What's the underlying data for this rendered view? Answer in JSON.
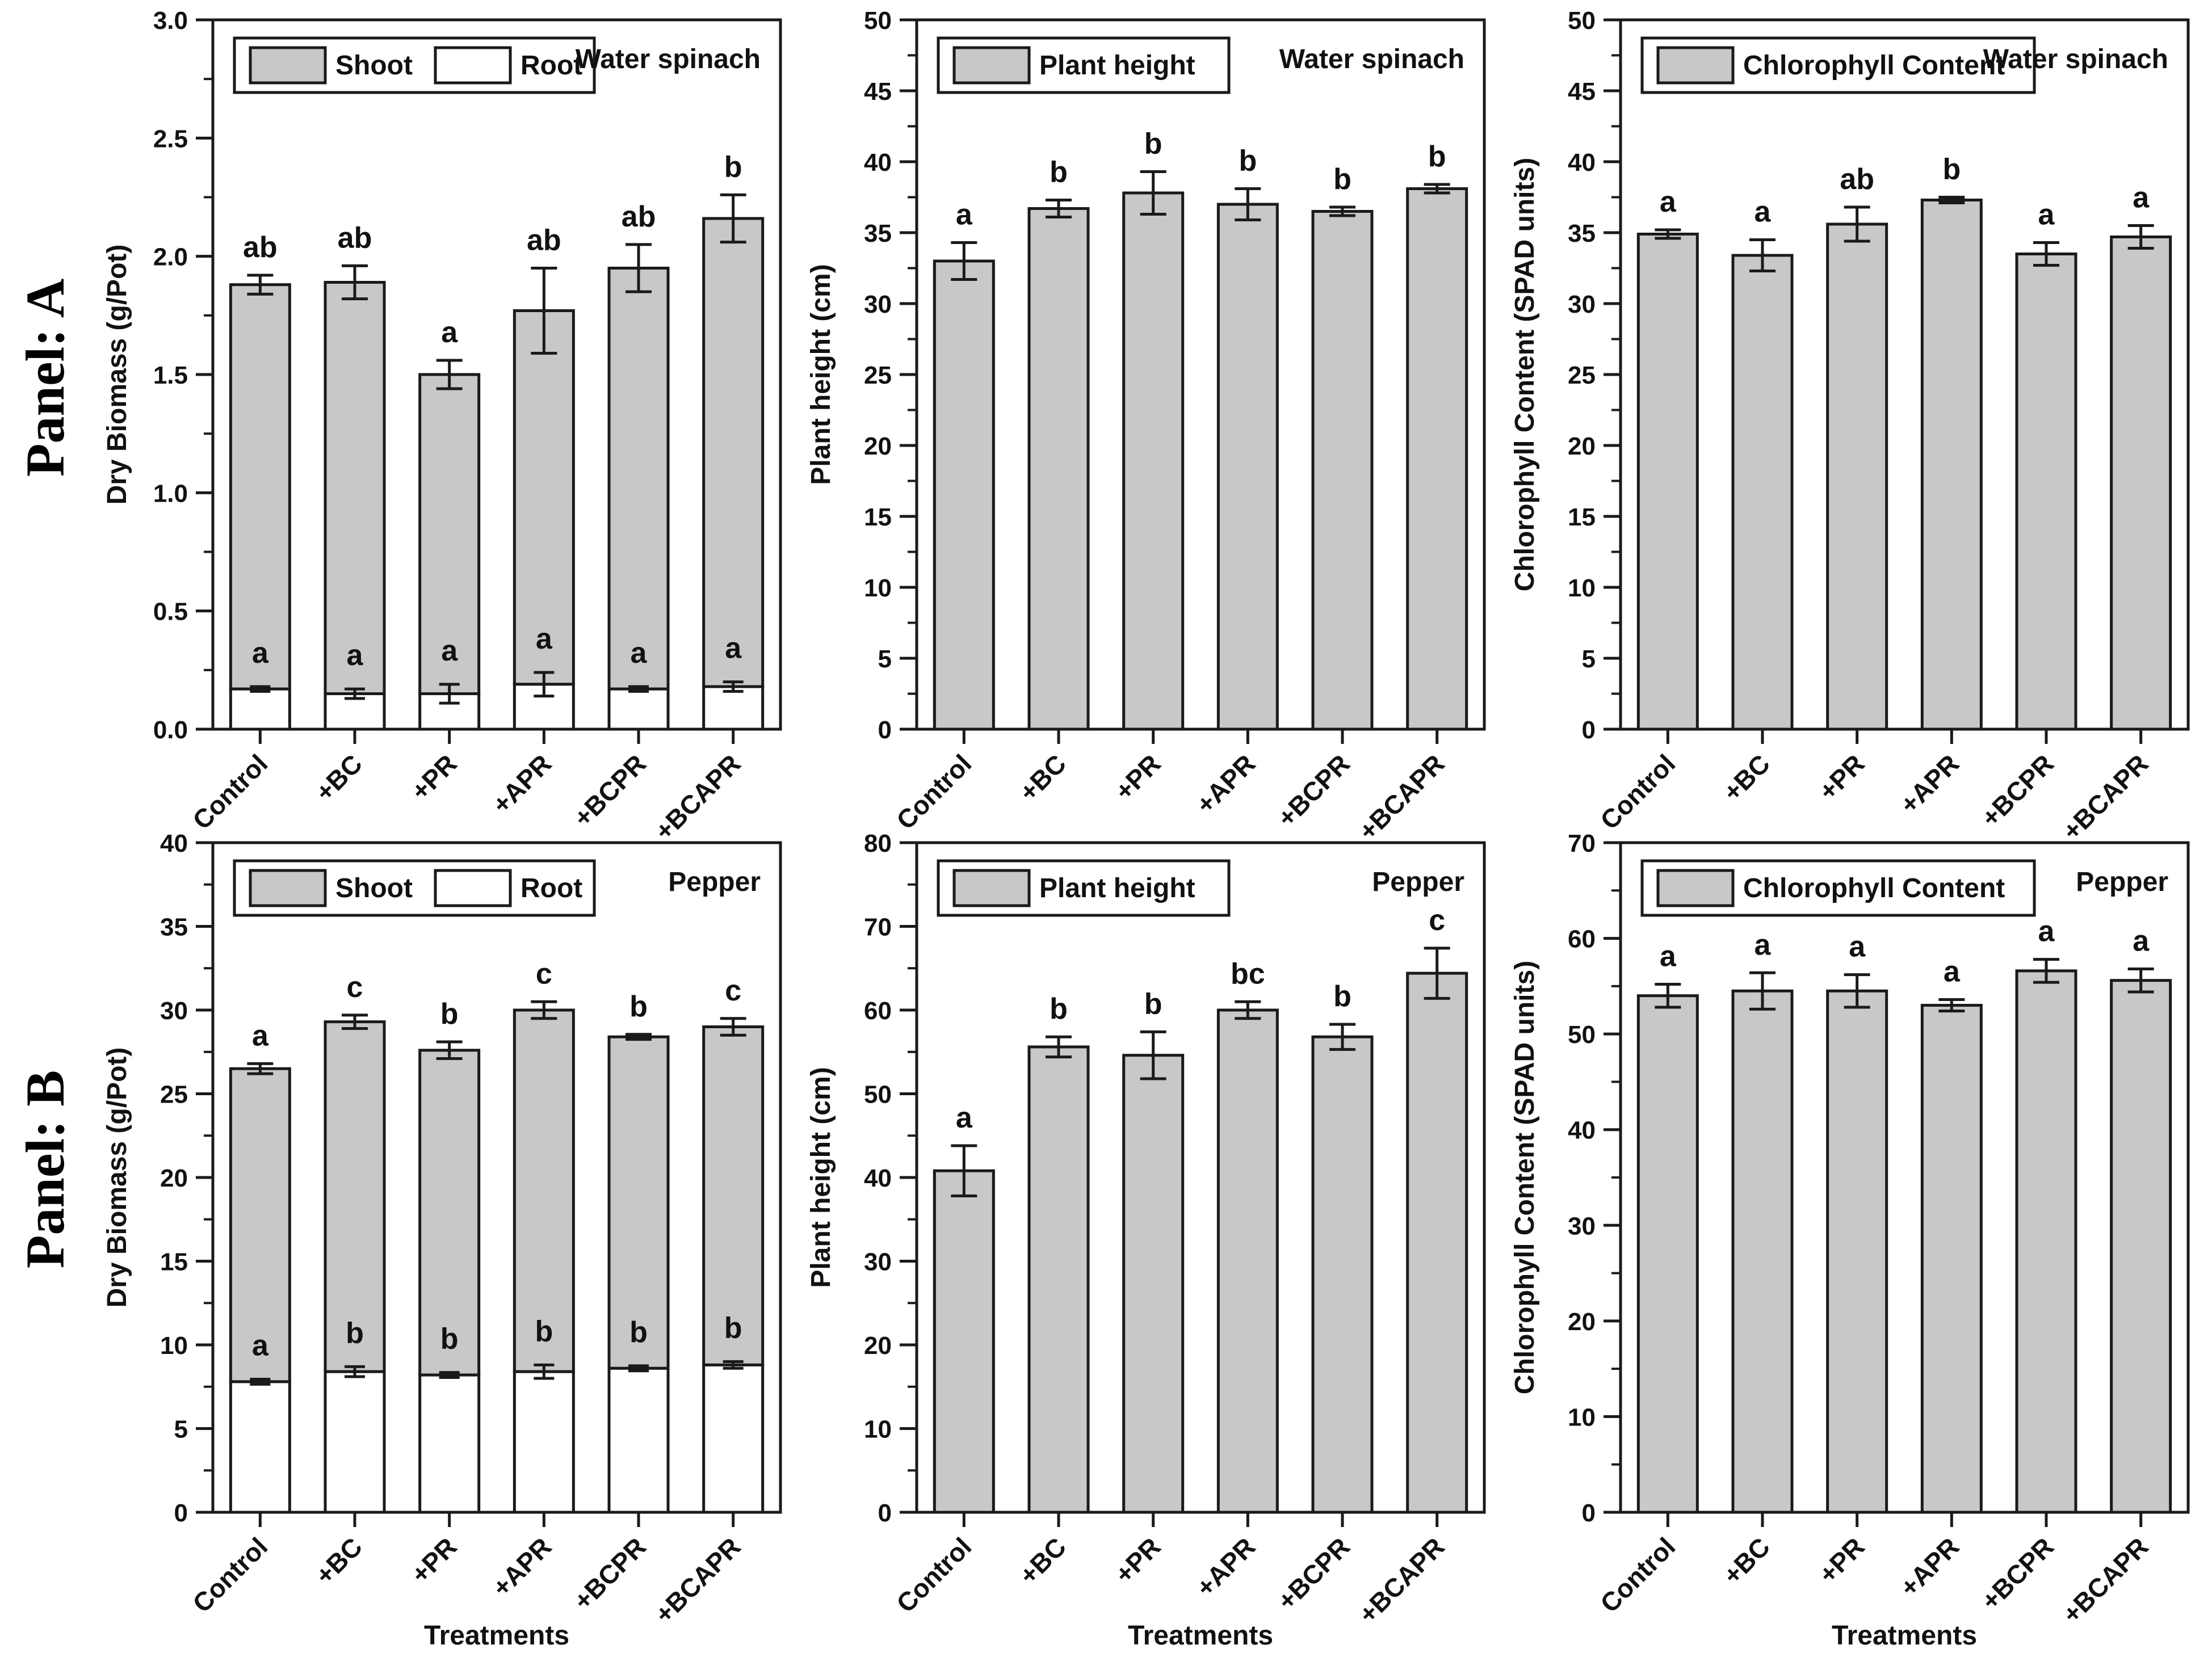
{
  "panels": [
    {
      "label": "Panel: A"
    },
    {
      "label": "Panel: B"
    }
  ],
  "xlabel": "Treatments",
  "colors": {
    "background": "#ffffff",
    "bar_fill": "#c8c8c8",
    "bar_stroke": "#1a1a1a",
    "axis": "#1a1a1a",
    "text": "#111111"
  },
  "chart_data": [
    {
      "type": "bar",
      "panel": "A",
      "annotation": "Water spinach",
      "ylabel": "Dry Biomass (g/Pot)",
      "ylim": [
        0,
        3.0
      ],
      "ytick_step": 0.5,
      "ytick_decimals": 1,
      "grid": false,
      "legend_position": "top-left",
      "stacked": true,
      "show_xlabel": false,
      "categories": [
        "Control",
        "+BC",
        "+PR",
        "+APR",
        "+BCPR",
        "+BCAPR"
      ],
      "legend": [
        {
          "label": "Shoot",
          "fill": "gray"
        },
        {
          "label": "Root",
          "fill": "white"
        }
      ],
      "series": {
        "root": {
          "name": "Root",
          "values": [
            0.17,
            0.15,
            0.15,
            0.19,
            0.17,
            0.18
          ],
          "errors": [
            0.01,
            0.02,
            0.04,
            0.05,
            0.01,
            0.02
          ],
          "letters": [
            "a",
            "a",
            "a",
            "a",
            "a",
            "a"
          ]
        },
        "total": {
          "name": "Shoot + Root total",
          "values": [
            1.88,
            1.89,
            1.5,
            1.77,
            1.95,
            2.16
          ],
          "errors": [
            0.04,
            0.07,
            0.06,
            0.18,
            0.1,
            0.1
          ],
          "letters": [
            "ab",
            "ab",
            "a",
            "ab",
            "ab",
            "b"
          ]
        }
      }
    },
    {
      "type": "bar",
      "panel": "A",
      "annotation": "Water spinach",
      "ylabel": "Plant height (cm)",
      "ylim": [
        0,
        50
      ],
      "ytick_step": 5,
      "ytick_decimals": 0,
      "grid": false,
      "legend_position": "top-left",
      "stacked": false,
      "show_xlabel": false,
      "categories": [
        "Control",
        "+BC",
        "+PR",
        "+APR",
        "+BCPR",
        "+BCAPR"
      ],
      "legend": [
        {
          "label": "Plant height",
          "fill": "gray"
        }
      ],
      "series": {
        "total": {
          "name": "Plant height",
          "values": [
            33.0,
            36.7,
            37.8,
            37.0,
            36.5,
            38.1
          ],
          "errors": [
            1.3,
            0.6,
            1.5,
            1.1,
            0.3,
            0.3
          ],
          "letters": [
            "a",
            "b",
            "b",
            "b",
            "b",
            "b"
          ]
        }
      }
    },
    {
      "type": "bar",
      "panel": "A",
      "annotation": "Water spinach",
      "ylabel": "Chlorophyll Content (SPAD units)",
      "ylim": [
        0,
        50
      ],
      "ytick_step": 5,
      "ytick_decimals": 0,
      "grid": false,
      "legend_position": "top-left",
      "stacked": false,
      "show_xlabel": false,
      "categories": [
        "Control",
        "+BC",
        "+PR",
        "+APR",
        "+BCPR",
        "+BCAPR"
      ],
      "legend": [
        {
          "label": "Chlorophyll Content",
          "fill": "gray"
        }
      ],
      "series": {
        "total": {
          "name": "Chlorophyll Content",
          "values": [
            34.9,
            33.4,
            35.6,
            37.3,
            33.5,
            34.7
          ],
          "errors": [
            0.3,
            1.1,
            1.2,
            0.2,
            0.8,
            0.8
          ],
          "letters": [
            "a",
            "a",
            "ab",
            "b",
            "a",
            "a"
          ]
        }
      }
    },
    {
      "type": "bar",
      "panel": "B",
      "annotation": "Pepper",
      "ylabel": "Dry Biomass (g/Pot)",
      "ylim": [
        0,
        40
      ],
      "ytick_step": 5,
      "ytick_decimals": 0,
      "grid": false,
      "legend_position": "top-left",
      "stacked": true,
      "show_xlabel": true,
      "categories": [
        "Control",
        "+BC",
        "+PR",
        "+APR",
        "+BCPR",
        "+BCAPR"
      ],
      "legend": [
        {
          "label": "Shoot",
          "fill": "gray"
        },
        {
          "label": "Root",
          "fill": "white"
        }
      ],
      "series": {
        "root": {
          "name": "Root",
          "values": [
            7.8,
            8.4,
            8.2,
            8.4,
            8.6,
            8.8
          ],
          "errors": [
            0.15,
            0.3,
            0.15,
            0.4,
            0.15,
            0.2
          ],
          "letters": [
            "a",
            "b",
            "b",
            "b",
            "b",
            "b"
          ]
        },
        "total": {
          "name": "Shoot + Root total",
          "values": [
            26.5,
            29.3,
            27.6,
            30.0,
            28.4,
            29.0
          ],
          "errors": [
            0.3,
            0.4,
            0.5,
            0.5,
            0.15,
            0.5
          ],
          "letters": [
            "a",
            "c",
            "b",
            "c",
            "b",
            "c"
          ]
        }
      }
    },
    {
      "type": "bar",
      "panel": "B",
      "annotation": "Pepper",
      "ylabel": "Plant height (cm)",
      "ylim": [
        0,
        80
      ],
      "ytick_step": 10,
      "ytick_decimals": 0,
      "grid": false,
      "legend_position": "top-left",
      "stacked": false,
      "show_xlabel": true,
      "categories": [
        "Control",
        "+BC",
        "+PR",
        "+APR",
        "+BCPR",
        "+BCAPR"
      ],
      "legend": [
        {
          "label": "Plant height",
          "fill": "gray"
        }
      ],
      "series": {
        "total": {
          "name": "Plant height",
          "values": [
            40.8,
            55.6,
            54.6,
            60.0,
            56.8,
            64.4
          ],
          "errors": [
            3.0,
            1.2,
            2.8,
            1.0,
            1.5,
            3.0
          ],
          "letters": [
            "a",
            "b",
            "b",
            "bc",
            "b",
            "c"
          ]
        }
      }
    },
    {
      "type": "bar",
      "panel": "B",
      "annotation": "Pepper",
      "ylabel": "Chlorophyll Content (SPAD units)",
      "ylim": [
        0,
        70
      ],
      "ytick_step": 10,
      "ytick_decimals": 0,
      "grid": false,
      "legend_position": "top-left",
      "stacked": false,
      "show_xlabel": true,
      "categories": [
        "Control",
        "+BC",
        "+PR",
        "+APR",
        "+BCPR",
        "+BCAPR"
      ],
      "legend": [
        {
          "label": "Chlorophyll Content",
          "fill": "gray"
        }
      ],
      "series": {
        "total": {
          "name": "Chlorophyll Content",
          "values": [
            54.0,
            54.5,
            54.5,
            53.0,
            56.6,
            55.6
          ],
          "errors": [
            1.2,
            1.9,
            1.7,
            0.6,
            1.2,
            1.2
          ],
          "letters": [
            "a",
            "a",
            "a",
            "a",
            "a",
            "a"
          ]
        }
      }
    }
  ]
}
